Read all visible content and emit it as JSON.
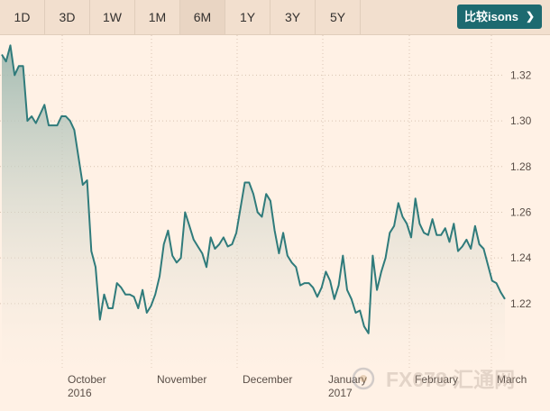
{
  "toolbar": {
    "ranges": [
      {
        "label": "1D",
        "active": false
      },
      {
        "label": "3D",
        "active": false
      },
      {
        "label": "1W",
        "active": false
      },
      {
        "label": "1M",
        "active": false
      },
      {
        "label": "6M",
        "active": true
      },
      {
        "label": "1Y",
        "active": false
      },
      {
        "label": "3Y",
        "active": false
      },
      {
        "label": "5Y",
        "active": false
      }
    ],
    "compare_label": "比较isons",
    "compare_chevron": "❯"
  },
  "colors": {
    "line": "#2f7b7b",
    "fill_top": "#9fb9b0",
    "fill_bottom": "#fff1e5",
    "grid": "#d8c4b2",
    "text": "#5a4f48",
    "button": "#1d6a70"
  },
  "watermark": "FX678 汇通网",
  "chart_data": {
    "type": "area",
    "ylim": [
      1.1955,
      1.3375
    ],
    "y_ticks": [
      "1.32",
      "1.30",
      "1.28",
      "1.26",
      "1.24",
      "1.22"
    ],
    "y_tick_values": [
      1.32,
      1.3,
      1.28,
      1.26,
      1.24,
      1.22
    ],
    "x_labels": [
      {
        "month": "October",
        "year": "2016",
        "date": "2016-10-03"
      },
      {
        "month": "November",
        "year": "",
        "date": "2016-11-01"
      },
      {
        "month": "December",
        "year": "",
        "date": "2016-12-01"
      },
      {
        "month": "January",
        "year": "2017",
        "date": "2017-01-02"
      },
      {
        "month": "February",
        "year": "",
        "date": "2017-02-01"
      },
      {
        "month": "March",
        "year": "",
        "date": "2017-03-01"
      }
    ],
    "values": [
      1.329,
      1.326,
      1.333,
      1.32,
      1.324,
      1.324,
      1.3,
      1.302,
      1.299,
      1.303,
      1.307,
      1.298,
      1.298,
      1.298,
      1.302,
      1.302,
      1.3,
      1.296,
      1.284,
      1.272,
      1.274,
      1.243,
      1.236,
      1.213,
      1.224,
      1.218,
      1.218,
      1.229,
      1.227,
      1.224,
      1.224,
      1.223,
      1.218,
      1.226,
      1.216,
      1.219,
      1.224,
      1.232,
      1.246,
      1.252,
      1.241,
      1.238,
      1.24,
      1.26,
      1.254,
      1.248,
      1.245,
      1.242,
      1.236,
      1.249,
      1.244,
      1.246,
      1.249,
      1.245,
      1.246,
      1.251,
      1.262,
      1.273,
      1.273,
      1.268,
      1.26,
      1.258,
      1.268,
      1.265,
      1.252,
      1.242,
      1.251,
      1.241,
      1.238,
      1.236,
      1.228,
      1.229,
      1.229,
      1.227,
      1.223,
      1.227,
      1.234,
      1.23,
      1.222,
      1.228,
      1.241,
      1.226,
      1.222,
      1.216,
      1.217,
      1.21,
      1.207,
      1.241,
      1.226,
      1.234,
      1.24,
      1.251,
      1.254,
      1.264,
      1.258,
      1.255,
      1.249,
      1.266,
      1.255,
      1.251,
      1.25,
      1.257,
      1.25,
      1.25,
      1.253,
      1.247,
      1.255,
      1.243,
      1.245,
      1.248,
      1.244,
      1.254,
      1.246,
      1.244,
      1.237,
      1.23,
      1.229,
      1.225,
      1.222
    ]
  }
}
